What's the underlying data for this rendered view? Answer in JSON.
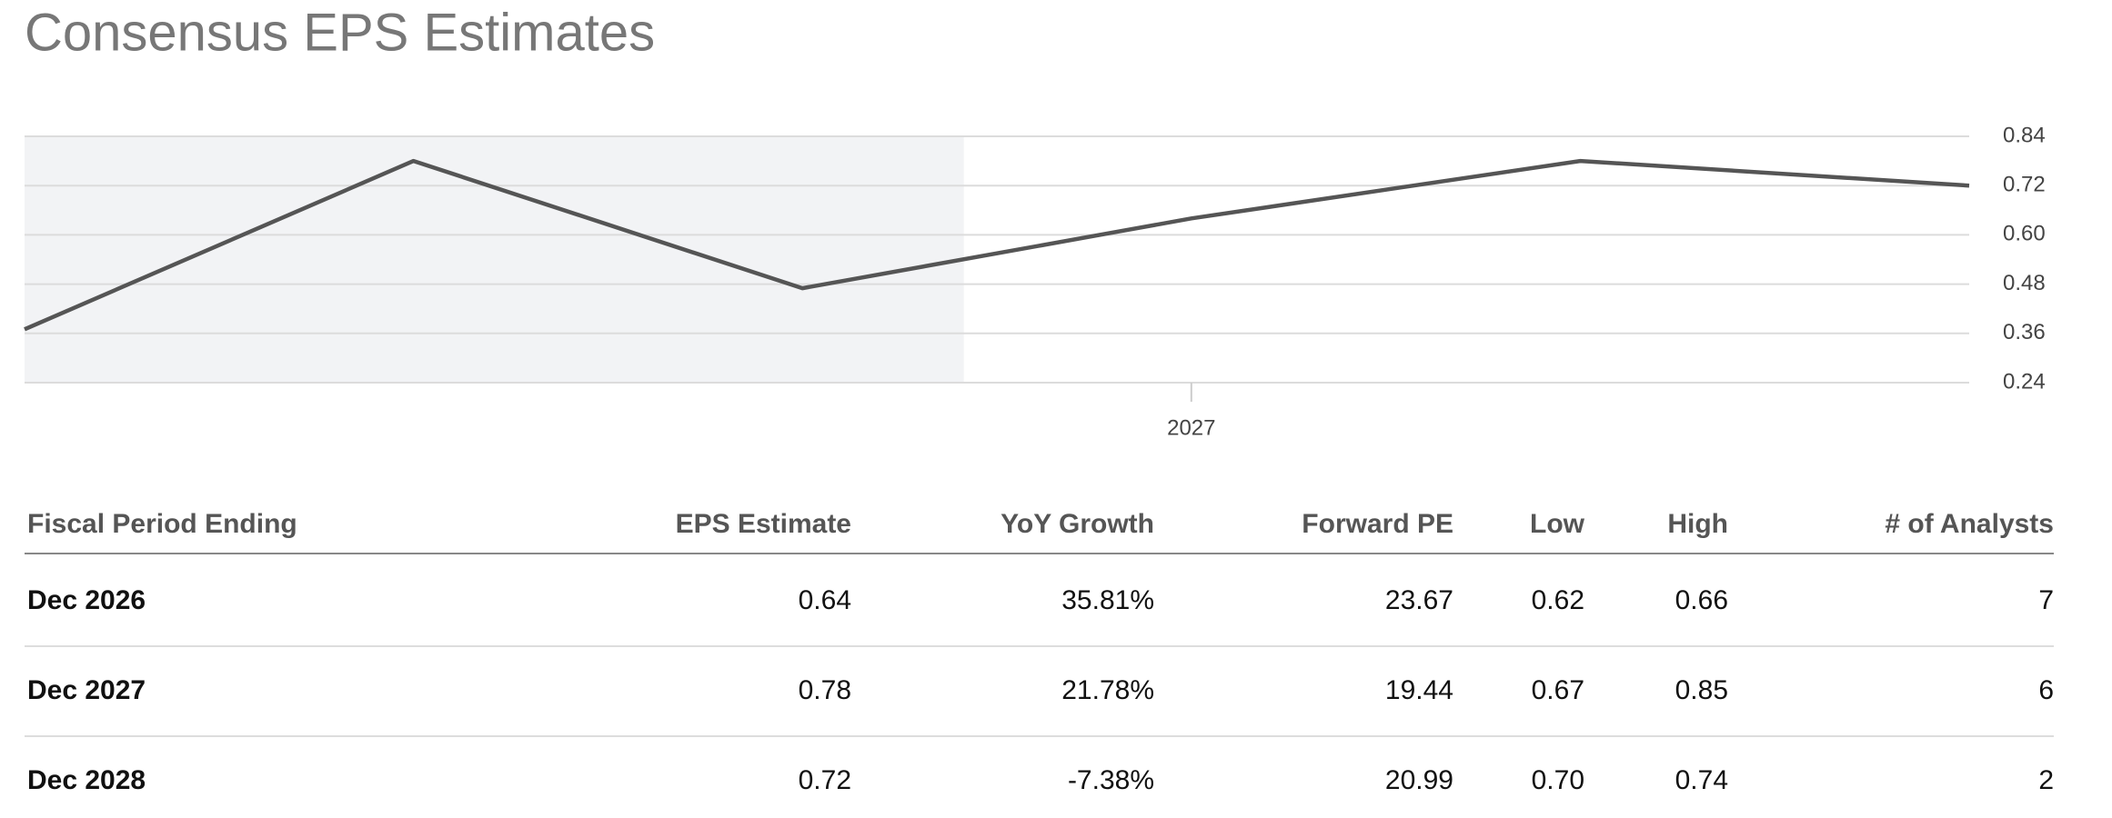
{
  "chart_data": {
    "type": "line",
    "title": "Consensus EPS Estimates",
    "categories": [
      null,
      null,
      null,
      "2027",
      null,
      null
    ],
    "series": [
      {
        "color": "#555555",
        "values": [
          0.37,
          0.78,
          0.47,
          0.64,
          0.78,
          0.72
        ]
      }
    ],
    "ylim": [
      0.24,
      0.84
    ],
    "yticks": [
      0.24,
      0.36,
      0.48,
      {
        "value": 0.6,
        "label": "0.60"
      },
      0.72,
      0.84
    ],
    "grid": true
  },
  "table": {
    "header": [
      "Fiscal Period Ending",
      "EPS Estimate",
      "YoY Growth",
      "Forward PE",
      "Low",
      "High",
      "# of Analysts"
    ],
    "rows": [
      [
        "Dec 2026",
        "0.64",
        "35.81%",
        "23.67",
        "0.62",
        "0.66",
        "7"
      ],
      [
        "Dec 2027",
        "0.78",
        "21.78%",
        "19.44",
        "0.67",
        "0.85",
        "6"
      ],
      [
        "Dec 2028",
        "0.72",
        "-7.38%",
        "20.99",
        "0.70",
        "0.74",
        "2"
      ]
    ]
  }
}
